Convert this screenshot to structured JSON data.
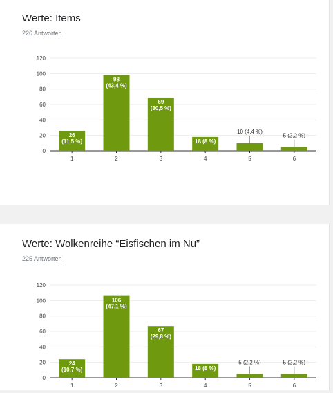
{
  "colors": {
    "bar": "#6f9a0f",
    "grid": "#ececec",
    "axis": "#333333"
  },
  "chart_data": [
    {
      "type": "bar",
      "title": "Werte: Items",
      "subtitle": "226 Antworten",
      "categories": [
        "1",
        "2",
        "3",
        "4",
        "5",
        "6"
      ],
      "values": [
        26,
        98,
        69,
        18,
        10,
        5
      ],
      "labels": [
        [
          "26",
          "(11,5 %)"
        ],
        [
          "98",
          "(43,4 %)"
        ],
        [
          "69",
          "(30,5 %)"
        ],
        [
          "18 (8 %)"
        ],
        [
          "10 (4,4 %)"
        ],
        [
          "5 (2,2 %)"
        ]
      ],
      "ylim": [
        0,
        120
      ],
      "yticks": [
        "0",
        "20",
        "40",
        "60",
        "80",
        "100",
        "120"
      ],
      "grid": true
    },
    {
      "type": "bar",
      "title": "Werte: Wolkenreihe “Eisfischen im Nu”",
      "subtitle": "225 Antworten",
      "categories": [
        "1",
        "2",
        "3",
        "4",
        "5",
        "6"
      ],
      "values": [
        24,
        106,
        67,
        18,
        5,
        5
      ],
      "labels": [
        [
          "24",
          "(10,7 %)"
        ],
        [
          "106",
          "(47,1 %)"
        ],
        [
          "67",
          "(29,8 %)"
        ],
        [
          "18 (8 %)"
        ],
        [
          "5 (2,2 %)"
        ],
        [
          "5 (2,2 %)"
        ]
      ],
      "ylim": [
        0,
        120
      ],
      "yticks": [
        "0",
        "20",
        "40",
        "60",
        "80",
        "100",
        "120"
      ],
      "grid": true
    }
  ]
}
